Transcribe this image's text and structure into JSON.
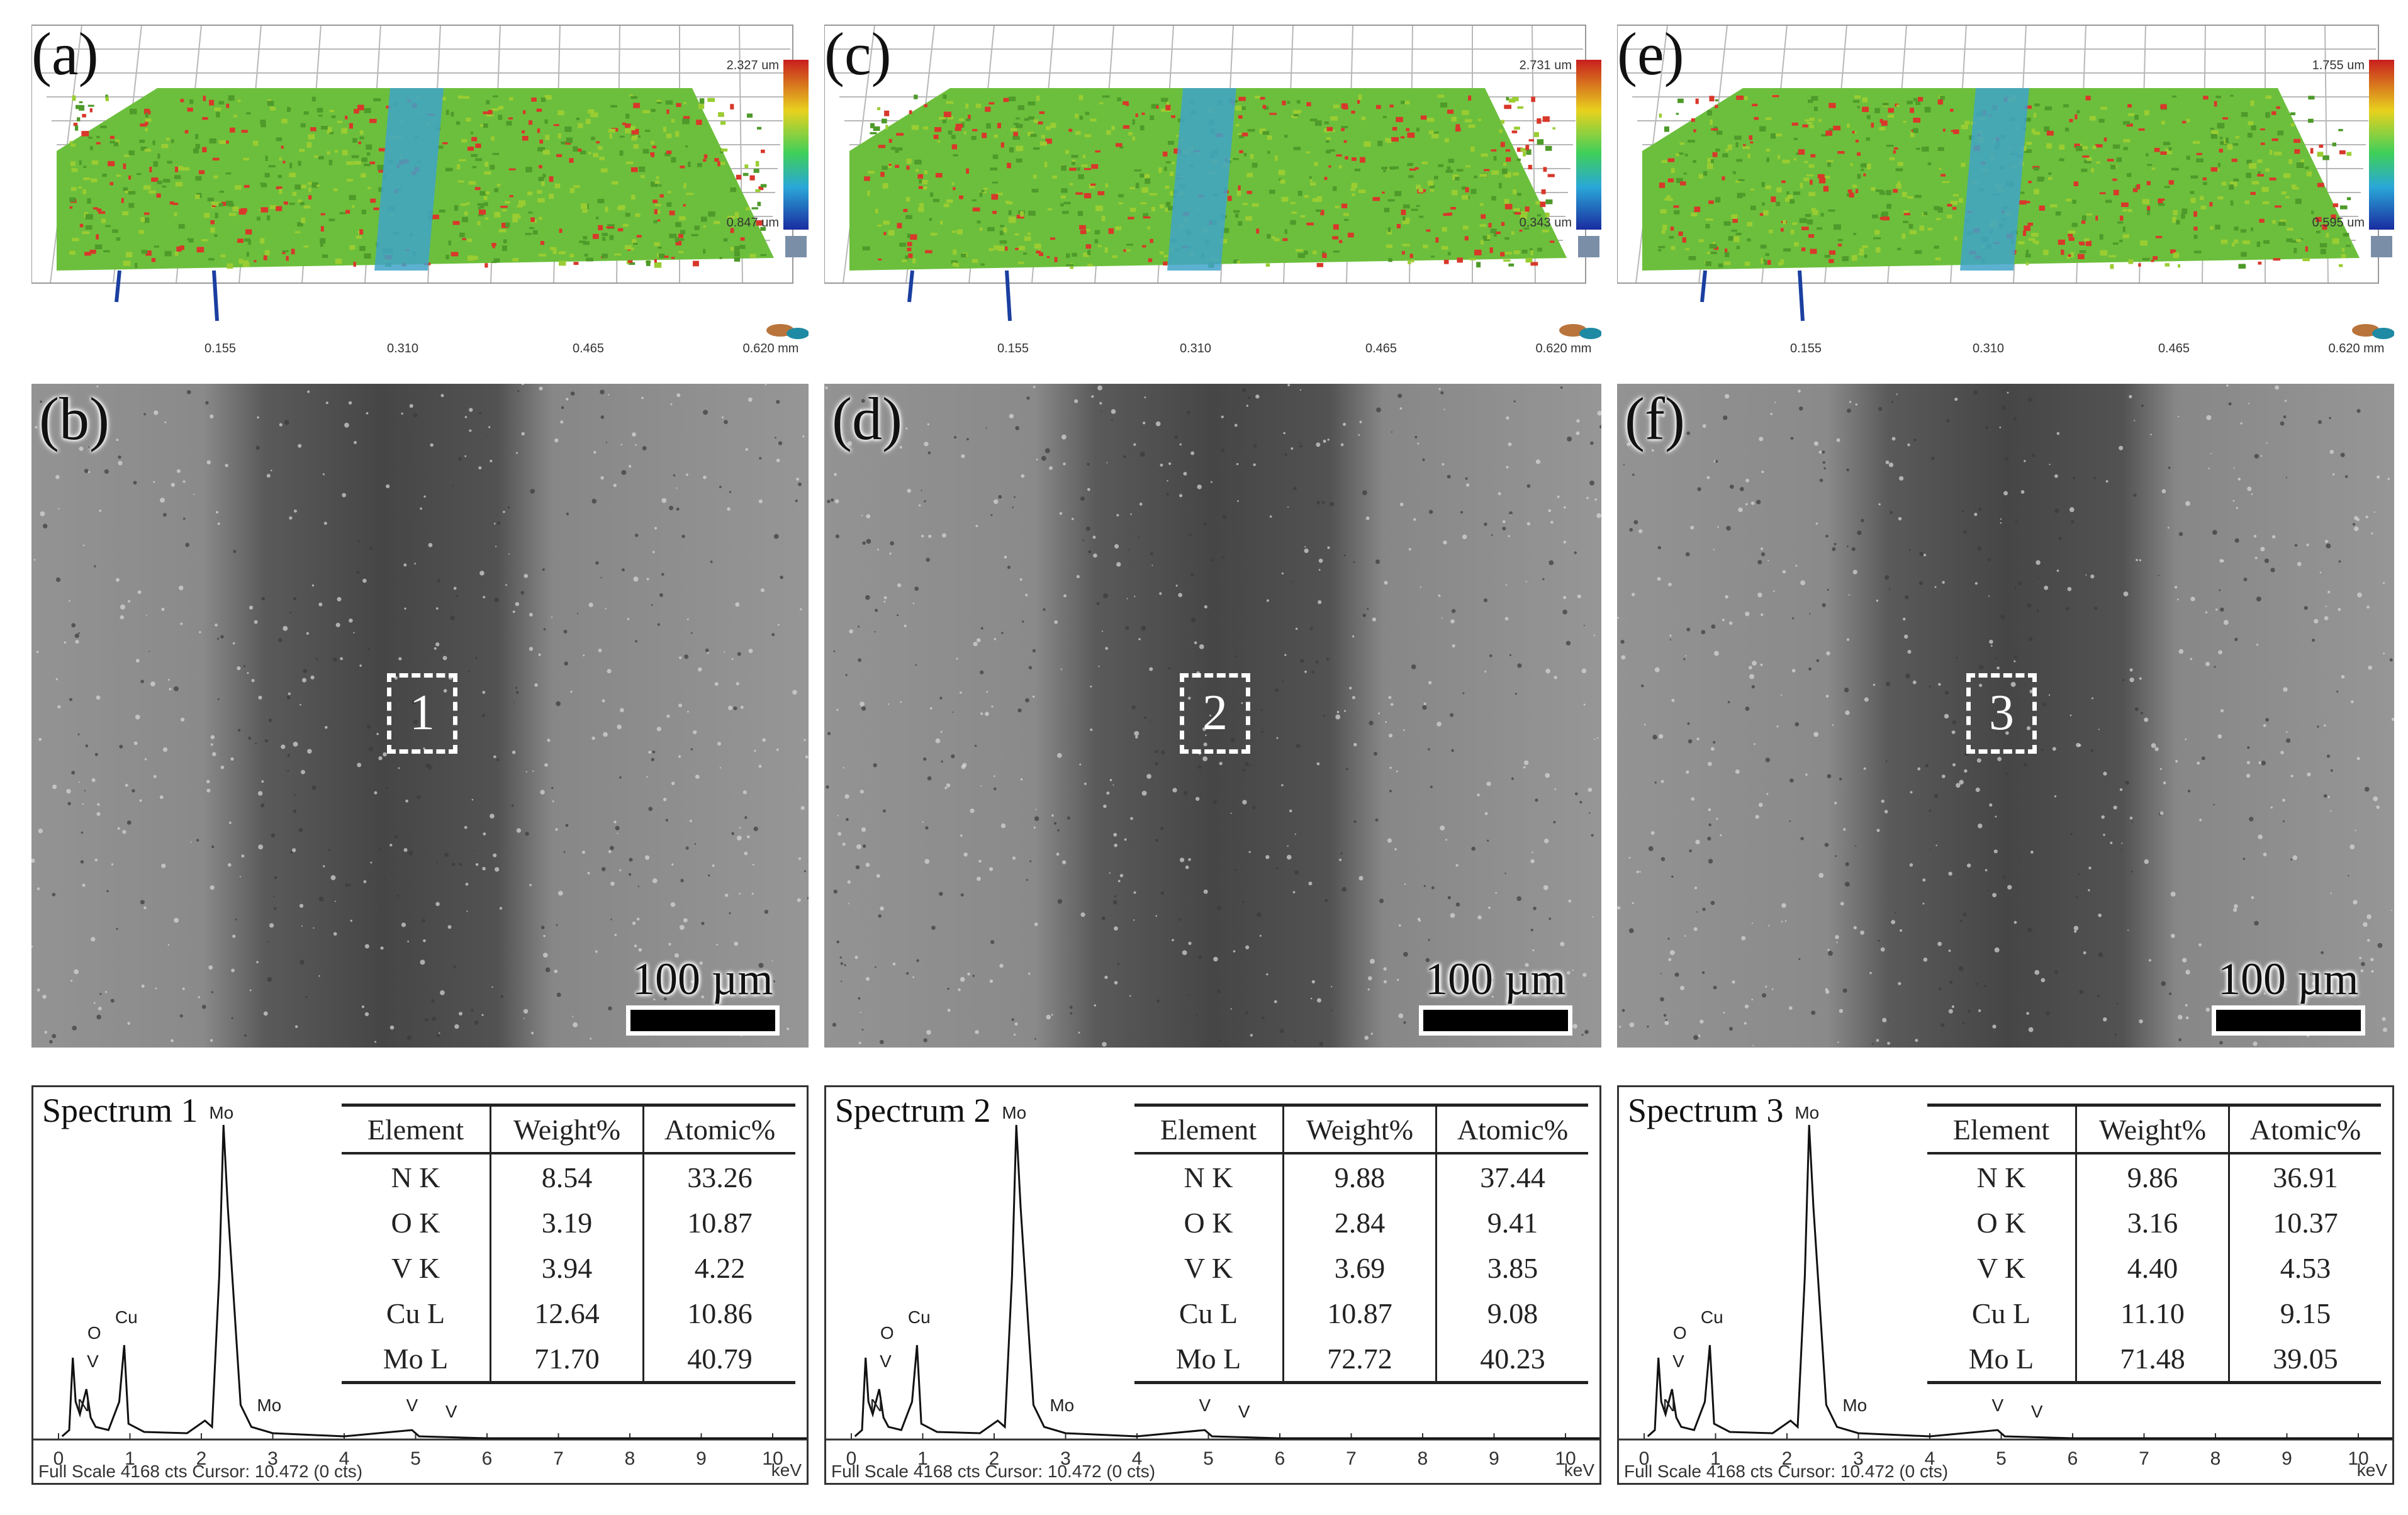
{
  "panels": [
    {
      "topo_label": "(a)",
      "sem_label": "(b)",
      "topo_scale_max": "2.327 um",
      "topo_scale_min": "0.847 um",
      "x_ticks": [
        "0.155",
        "0.310",
        "0.465",
        "0.620 mm"
      ],
      "roi": "1",
      "scale_bar": "100 µm",
      "spectrum_title": "Spectrum 1",
      "table_header": [
        "Element",
        "Weight%",
        "Atomic%"
      ],
      "rows": [
        [
          "N K",
          "8.54",
          "33.26"
        ],
        [
          "O K",
          "3.19",
          "10.87"
        ],
        [
          "V K",
          "3.94",
          "4.22"
        ],
        [
          "Cu L",
          "12.64",
          "10.86"
        ],
        [
          "Mo L",
          "71.70",
          "40.79"
        ]
      ],
      "peaks": [
        "Mo",
        "Cu",
        "O",
        "V",
        "N",
        "Mo",
        "V",
        "V"
      ],
      "ticks": [
        "0",
        "1",
        "2",
        "3",
        "4",
        "5",
        "6",
        "7",
        "8",
        "9",
        "10"
      ],
      "footer": "Full Scale 4168 cts Cursor: 10.472  (0 cts)",
      "unit": "keV"
    },
    {
      "topo_label": "(c)",
      "sem_label": "(d)",
      "topo_scale_max": "2.731 um",
      "topo_scale_min": "0.343 um",
      "x_ticks": [
        "0.155",
        "0.310",
        "0.465",
        "0.620 mm"
      ],
      "roi": "2",
      "scale_bar": "100 µm",
      "spectrum_title": "Spectrum 2",
      "table_header": [
        "Element",
        "Weight%",
        "Atomic%"
      ],
      "rows": [
        [
          "N K",
          "9.88",
          "37.44"
        ],
        [
          "O K",
          "2.84",
          "9.41"
        ],
        [
          "V K",
          "3.69",
          "3.85"
        ],
        [
          "Cu L",
          "10.87",
          "9.08"
        ],
        [
          "Mo L",
          "72.72",
          "40.23"
        ]
      ],
      "peaks": [
        "Mo",
        "Cu",
        "O",
        "V",
        "N",
        "Mo",
        "V",
        "V"
      ],
      "ticks": [
        "0",
        "1",
        "2",
        "3",
        "4",
        "5",
        "6",
        "7",
        "8",
        "9",
        "10"
      ],
      "footer": "Full Scale 4168 cts Cursor: 10.472  (0 cts)",
      "unit": "keV"
    },
    {
      "topo_label": "(e)",
      "sem_label": "(f)",
      "topo_scale_max": "1.755 um",
      "topo_scale_min": "0.595 um",
      "x_ticks": [
        "0.155",
        "0.310",
        "0.465",
        "0.620 mm"
      ],
      "roi": "3",
      "scale_bar": "100 µm",
      "spectrum_title": "Spectrum 3",
      "table_header": [
        "Element",
        "Weight%",
        "Atomic%"
      ],
      "rows": [
        [
          "N K",
          "9.86",
          "36.91"
        ],
        [
          "O K",
          "3.16",
          "10.37"
        ],
        [
          "V K",
          "4.40",
          "4.53"
        ],
        [
          "Cu L",
          "11.10",
          "9.15"
        ],
        [
          "Mo L",
          "71.48",
          "39.05"
        ]
      ],
      "peaks": [
        "Mo",
        "Cu",
        "O",
        "V",
        "N",
        "Mo",
        "V",
        "V"
      ],
      "ticks": [
        "0",
        "1",
        "2",
        "3",
        "4",
        "5",
        "6",
        "7",
        "8",
        "9",
        "10"
      ],
      "footer": "Full Scale 4168 cts Cursor: 10.472  (0 cts)",
      "unit": "keV"
    }
  ],
  "colors": {
    "surface_green": "#6cbf3c",
    "surface_red": "#d8382a",
    "track_blue": "#3fa3c8",
    "sem_gray": "#8a8a8a",
    "sem_track": "#505050"
  }
}
